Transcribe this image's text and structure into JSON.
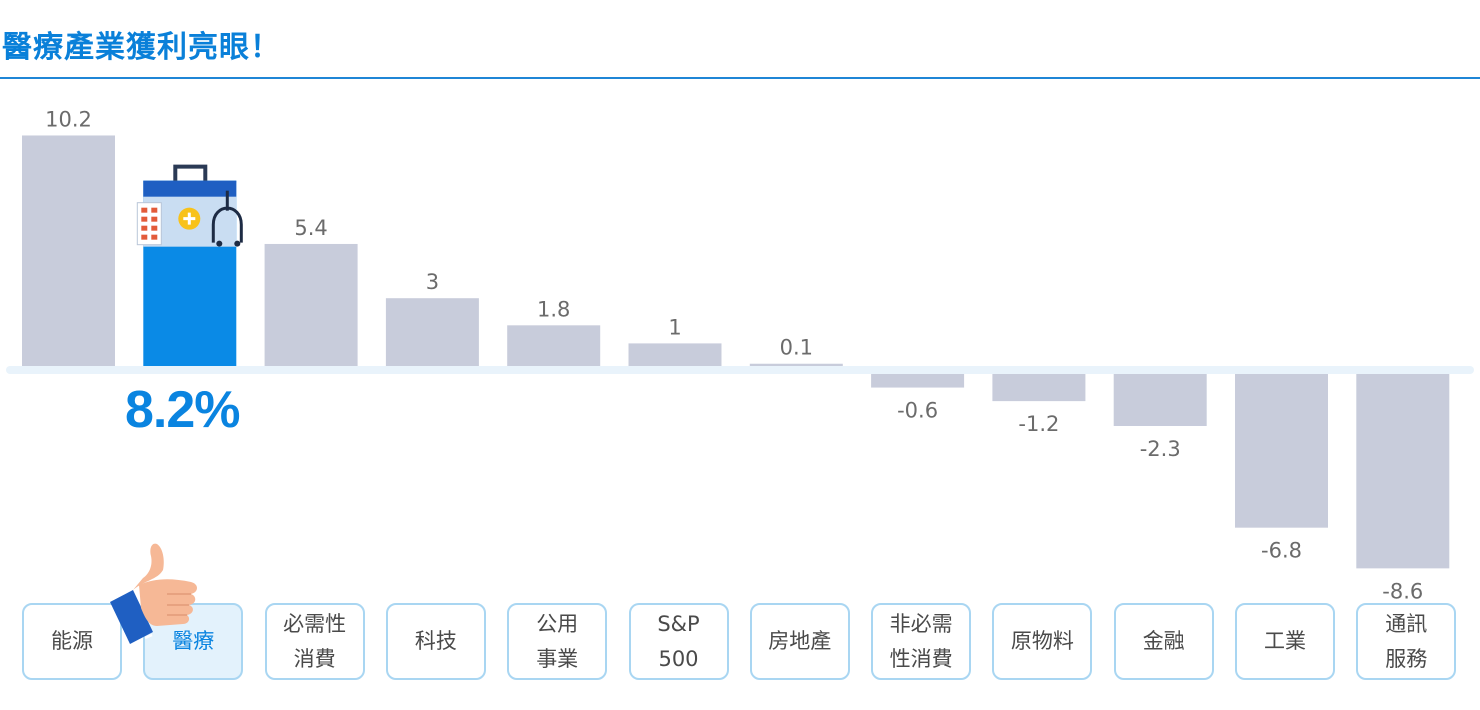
{
  "title": "醫療產業獲利亮眼！",
  "highlight": {
    "index": 1,
    "label": "8.2%",
    "color": "#0a8ae6"
  },
  "colors": {
    "bar": "#c8ccdb",
    "highlight": "#0a8ae6",
    "title": "#0a80d9",
    "axis": "#e9f3fb"
  },
  "icons": {
    "highlight_bar": "medical-kit-icon",
    "thumb": "thumbs-up-icon"
  },
  "chart_data": {
    "type": "bar",
    "title": "醫療產業獲利亮眼！",
    "categories": [
      "能源",
      "醫療",
      "必需性\n消費",
      "科技",
      "公用\n事業",
      "S&P\n500",
      "房地產",
      "非必需\n性消費",
      "原物料",
      "金融",
      "工業",
      "通訊\n服務"
    ],
    "values": [
      10.2,
      8.2,
      5.4,
      3,
      1.8,
      1,
      0.1,
      -0.6,
      -1.2,
      -2.3,
      -6.8,
      -8.6
    ],
    "value_labels": [
      "10.2",
      "",
      "5.4",
      "3",
      "1.8",
      "1",
      "0.1",
      "-0.6",
      "-1.2",
      "-2.3",
      "-6.8",
      "-8.6"
    ],
    "xlabel": "",
    "ylabel": "",
    "grid": false,
    "legend": "none"
  }
}
